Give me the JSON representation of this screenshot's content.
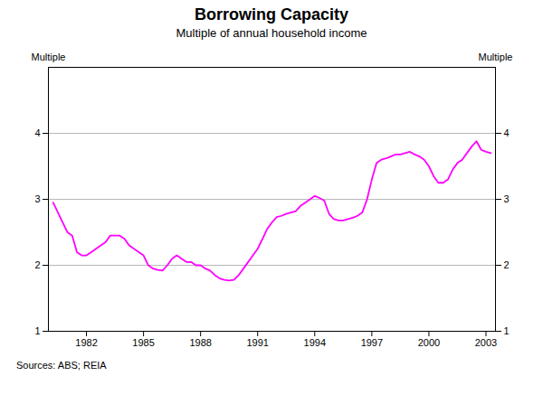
{
  "chart_data": {
    "type": "line",
    "title": "Borrowing Capacity",
    "subtitle": "Multiple of annual household income",
    "ylabel": "Multiple",
    "y2label": "Multiple",
    "source": "Sources: ABS; REIA",
    "color": "#ff00ff",
    "grid": true,
    "xlim": [
      1980.0,
      2003.5
    ],
    "xticks": [
      1982,
      1985,
      1988,
      1991,
      1994,
      1997,
      2000,
      2003
    ],
    "ylim": [
      1,
      5
    ],
    "yticks": [
      1,
      2,
      3,
      4
    ],
    "x": [
      1980.25,
      1980.5,
      1980.75,
      1981.0,
      1981.25,
      1981.5,
      1981.75,
      1982.0,
      1982.25,
      1982.5,
      1982.75,
      1983.0,
      1983.25,
      1983.5,
      1983.75,
      1984.0,
      1984.25,
      1984.5,
      1984.75,
      1985.0,
      1985.25,
      1985.5,
      1985.75,
      1986.0,
      1986.25,
      1986.5,
      1986.75,
      1987.0,
      1987.25,
      1987.5,
      1987.75,
      1988.0,
      1988.25,
      1988.5,
      1988.75,
      1989.0,
      1989.25,
      1989.5,
      1989.75,
      1990.0,
      1990.25,
      1990.5,
      1990.75,
      1991.0,
      1991.25,
      1991.5,
      1991.75,
      1992.0,
      1992.25,
      1992.5,
      1992.75,
      1993.0,
      1993.25,
      1993.5,
      1993.75,
      1994.0,
      1994.25,
      1994.5,
      1994.75,
      1995.0,
      1995.25,
      1995.5,
      1995.75,
      1996.0,
      1996.25,
      1996.5,
      1996.75,
      1997.0,
      1997.25,
      1997.5,
      1997.75,
      1998.0,
      1998.25,
      1998.5,
      1998.75,
      1999.0,
      1999.25,
      1999.5,
      1999.75,
      2000.0,
      2000.25,
      2000.5,
      2000.75,
      2001.0,
      2001.25,
      2001.5,
      2001.75,
      2002.0,
      2002.25,
      2002.5,
      2002.75,
      2003.0,
      2003.25
    ],
    "values": [
      2.95,
      2.8,
      2.65,
      2.5,
      2.45,
      2.2,
      2.15,
      2.15,
      2.2,
      2.25,
      2.3,
      2.35,
      2.45,
      2.45,
      2.45,
      2.4,
      2.3,
      2.25,
      2.2,
      2.15,
      2.0,
      1.95,
      1.93,
      1.92,
      2.0,
      2.1,
      2.15,
      2.1,
      2.05,
      2.05,
      2.0,
      2.0,
      1.95,
      1.92,
      1.85,
      1.8,
      1.78,
      1.77,
      1.78,
      1.85,
      1.95,
      2.05,
      2.15,
      2.25,
      2.4,
      2.55,
      2.65,
      2.73,
      2.75,
      2.78,
      2.8,
      2.82,
      2.9,
      2.95,
      3.0,
      3.05,
      3.02,
      2.98,
      2.78,
      2.7,
      2.68,
      2.68,
      2.7,
      2.72,
      2.75,
      2.8,
      3.0,
      3.3,
      3.55,
      3.6,
      3.62,
      3.65,
      3.68,
      3.68,
      3.7,
      3.72,
      3.68,
      3.65,
      3.6,
      3.5,
      3.35,
      3.25,
      3.25,
      3.3,
      3.45,
      3.55,
      3.6,
      3.7,
      3.8,
      3.88,
      3.75,
      3.72,
      3.7
    ]
  }
}
